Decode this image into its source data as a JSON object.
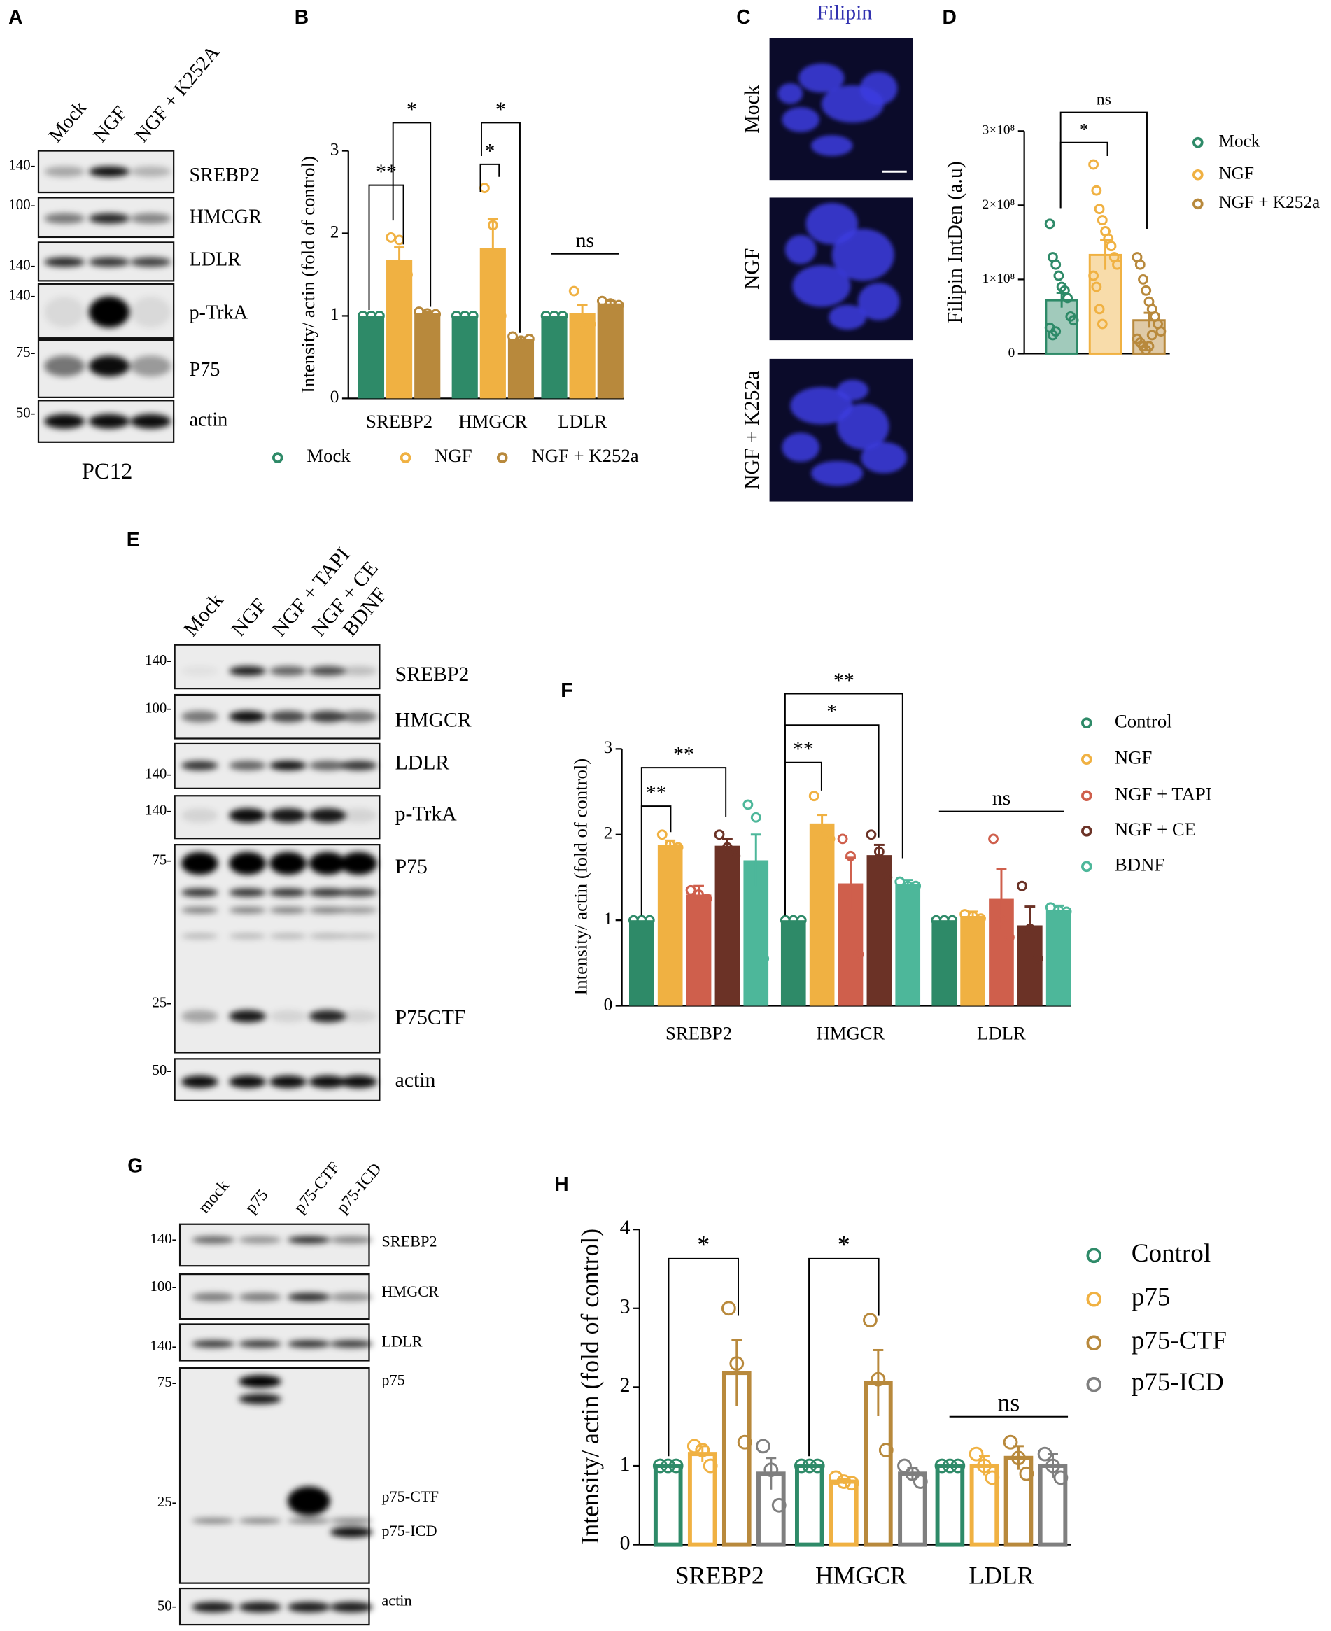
{
  "panel_labels": [
    "A",
    "B",
    "C",
    "D",
    "E",
    "F",
    "G",
    "H"
  ],
  "blots": {
    "a": {
      "lanes": [
        "Mock",
        "NGF",
        "NGF + K252A"
      ],
      "rows": [
        "SREBP2",
        "HMCGR",
        "LDLR",
        "p-TrkA",
        "P75",
        "actin"
      ],
      "markers": [
        "140-",
        "100-",
        "140-",
        "140-",
        "75-",
        "50-"
      ],
      "cell_line": "PC12"
    },
    "e": {
      "lanes": [
        "Mock",
        "NGF",
        "NGF + TAPI",
        "NGF + CE",
        "BDNF"
      ],
      "rows": [
        "SREBP2",
        "HMGCR",
        "LDLR",
        "p-TrkA",
        "P75",
        "P75CTF",
        "actin"
      ],
      "markers": [
        "140-",
        "100-",
        "140-",
        "140-",
        "75-",
        "25-",
        "50-"
      ]
    },
    "g": {
      "lanes": [
        "mock",
        "p75",
        "p75-CTF",
        "p75-ICD"
      ],
      "rows": [
        "SREBP2",
        "HMGCR",
        "LDLR",
        "p75",
        "p75-CTF",
        "p75-ICD",
        "actin"
      ],
      "markers": [
        "140-",
        "100-",
        "140-",
        "75-",
        "25-",
        "50-"
      ]
    }
  },
  "imaging": {
    "stain": "Filipin",
    "rows": [
      "Mock",
      "NGF",
      "NGF + K252a"
    ]
  },
  "chart_data": [
    {
      "type": "bar",
      "y_label": "Intensity/ actin (fold of control)",
      "categories": [
        "SREBP2",
        "HMGCR",
        "LDLR"
      ],
      "ylim": [
        0,
        3
      ],
      "yticks": [
        0,
        1,
        2,
        3
      ],
      "series": [
        {
          "name": "Mock",
          "color": "#2e8a68",
          "values": [
            1,
            1,
            1
          ],
          "errors": [
            0,
            0,
            0
          ],
          "points": [
            [
              1,
              1,
              1
            ],
            [
              1,
              1,
              1
            ],
            [
              1,
              1,
              1
            ]
          ]
        },
        {
          "name": "NGF",
          "color": "#f0b142",
          "values": [
            1.68,
            1.82,
            1.03
          ],
          "errors": [
            0.15,
            0.35,
            0.1
          ],
          "points": [
            [
              1.95,
              1.92,
              1.5
            ],
            [
              2.55,
              2.1,
              1.0
            ],
            [
              1.3,
              0.9,
              0.9
            ]
          ]
        },
        {
          "name": "NGF + K252a",
          "color": "#b8893c",
          "values": [
            1.03,
            0.72,
            1.15
          ],
          "errors": [
            0.02,
            0.02,
            0.03
          ],
          "points": [
            [
              1.05,
              1.03,
              1.02
            ],
            [
              0.75,
              0.7,
              0.72
            ],
            [
              1.18,
              1.15,
              1.13
            ]
          ]
        }
      ],
      "annotations": [
        {
          "text": "**"
        },
        {
          "text": "*"
        },
        {
          "text": "*"
        },
        {
          "text": "*"
        },
        {
          "text": "ns"
        }
      ]
    },
    {
      "type": "bar",
      "y_label": "Filipin IntDen (a.u)",
      "bar_style": "light",
      "ylim": [
        0,
        300000000
      ],
      "yticks": [
        0,
        {
          "value": 100000000,
          "label": "1×10⁸"
        },
        {
          "value": 200000000,
          "label": "2×10⁸"
        },
        {
          "value": 300000000,
          "label": "3×10⁸"
        }
      ],
      "series": [
        {
          "name": "Mock",
          "color": "#2e8a68",
          "values": [
            72000000
          ],
          "errors": [
            10000000
          ],
          "points": [
            [
              175000000,
              130000000,
              120000000,
              105000000,
              90000000,
              85000000,
              75000000,
              50000000,
              45000000,
              35000000,
              25000000,
              30000000
            ]
          ]
        },
        {
          "name": "NGF",
          "color": "#f0b142",
          "values": [
            133000000
          ],
          "errors": [
            20000000
          ],
          "points": [
            [
              255000000,
              220000000,
              195000000,
              180000000,
              165000000,
              155000000,
              145000000,
              130000000,
              120000000,
              105000000,
              90000000,
              60000000,
              40000000
            ]
          ]
        },
        {
          "name": "NGF + K252a",
          "color": "#b8893c",
          "values": [
            45000000
          ],
          "errors": [
            10000000
          ],
          "points": [
            [
              130000000,
              120000000,
              100000000,
              85000000,
              70000000,
              60000000,
              50000000,
              40000000,
              30000000,
              20000000,
              15000000,
              10000000,
              5000000,
              10000000,
              25000000
            ]
          ]
        }
      ],
      "annotations": [
        {
          "text": "*"
        },
        {
          "text": "ns"
        }
      ]
    },
    {
      "type": "bar",
      "y_label": "Intensity/ actin (fold of control)",
      "categories": [
        "SREBP2",
        "HMGCR",
        "LDLR"
      ],
      "ylim": [
        0,
        3
      ],
      "yticks": [
        0,
        1,
        2,
        3
      ],
      "series": [
        {
          "name": "Control",
          "color": "#2e8a68",
          "values": [
            1,
            1,
            1
          ],
          "errors": [
            0,
            0,
            0
          ],
          "points": [
            [
              1,
              1,
              1
            ],
            [
              1,
              1,
              1
            ],
            [
              1,
              1,
              1
            ]
          ]
        },
        {
          "name": "NGF",
          "color": "#f0b142",
          "values": [
            1.88,
            2.13,
            1.05
          ],
          "errors": [
            0.05,
            0.1,
            0.05
          ],
          "points": [
            [
              2.0,
              1.88,
              1.85
            ],
            [
              2.45,
              2.0,
              1.95
            ],
            [
              1.07,
              1.05,
              1.02
            ]
          ]
        },
        {
          "name": "NGF + TAPI",
          "color": "#cf5f4c",
          "values": [
            1.3,
            1.43,
            1.25
          ],
          "errors": [
            0.1,
            0.3,
            0.35
          ],
          "points": [
            [
              1.35,
              1.3,
              1.25
            ],
            [
              1.95,
              1.75,
              0.6
            ],
            [
              1.95,
              1.0,
              0.8
            ]
          ]
        },
        {
          "name": "NGF + CE",
          "color": "#6b3226",
          "values": [
            1.87,
            1.76,
            0.94
          ],
          "errors": [
            0.08,
            0.12,
            0.22
          ],
          "points": [
            [
              2.0,
              1.85,
              1.75
            ],
            [
              2.0,
              1.8,
              1.5
            ],
            [
              1.4,
              0.9,
              0.55
            ]
          ]
        },
        {
          "name": "BDNF",
          "color": "#4db79a",
          "values": [
            1.7,
            1.42,
            1.12
          ],
          "errors": [
            0.3,
            0.05,
            0.05
          ],
          "points": [
            [
              2.35,
              2.2,
              0.55
            ],
            [
              1.45,
              1.4,
              1.4
            ],
            [
              1.15,
              1.12,
              1.1
            ]
          ]
        }
      ],
      "annotations": [
        {
          "text": "**"
        },
        {
          "text": "**"
        },
        {
          "text": "**"
        },
        {
          "text": "*"
        },
        {
          "text": "**"
        },
        {
          "text": "ns"
        }
      ]
    },
    {
      "type": "bar",
      "y_label": "Intensity/ actin (fold of control)",
      "categories": [
        "SREBP2",
        "HMGCR",
        "LDLR"
      ],
      "bar_style": "outline",
      "ylim": [
        0,
        4
      ],
      "yticks": [
        0,
        1,
        2,
        3,
        4
      ],
      "series": [
        {
          "name": "Control",
          "color": "#2e8a68",
          "values": [
            1,
            1,
            1
          ],
          "errors": [
            0,
            0,
            0
          ],
          "points": [
            [
              1,
              1,
              1
            ],
            [
              1,
              1,
              1
            ],
            [
              1,
              1,
              1
            ]
          ]
        },
        {
          "name": "p75",
          "color": "#f0b142",
          "values": [
            1.15,
            0.8,
            1.0
          ],
          "errors": [
            0.1,
            0.03,
            0.12
          ],
          "points": [
            [
              1.25,
              1.2,
              1.0
            ],
            [
              0.85,
              0.8,
              0.78
            ],
            [
              1.15,
              1.0,
              0.85
            ]
          ]
        },
        {
          "name": "p75-CTF",
          "color": "#b8893c",
          "values": [
            2.18,
            2.05,
            1.1
          ],
          "errors": [
            0.42,
            0.42,
            0.15
          ],
          "points": [
            [
              3.0,
              2.3,
              1.3
            ],
            [
              2.85,
              2.1,
              1.2
            ],
            [
              1.3,
              1.1,
              0.9
            ]
          ]
        },
        {
          "name": "p75-ICD",
          "color": "#7f7f7f",
          "values": [
            0.9,
            0.9,
            1.0
          ],
          "errors": [
            0.2,
            0.07,
            0.15
          ],
          "points": [
            [
              1.25,
              0.95,
              0.5
            ],
            [
              1.0,
              0.9,
              0.8
            ],
            [
              1.15,
              1.0,
              0.85
            ]
          ]
        }
      ],
      "annotations": [
        {
          "text": "*"
        },
        {
          "text": "*"
        },
        {
          "text": "ns"
        }
      ]
    }
  ]
}
